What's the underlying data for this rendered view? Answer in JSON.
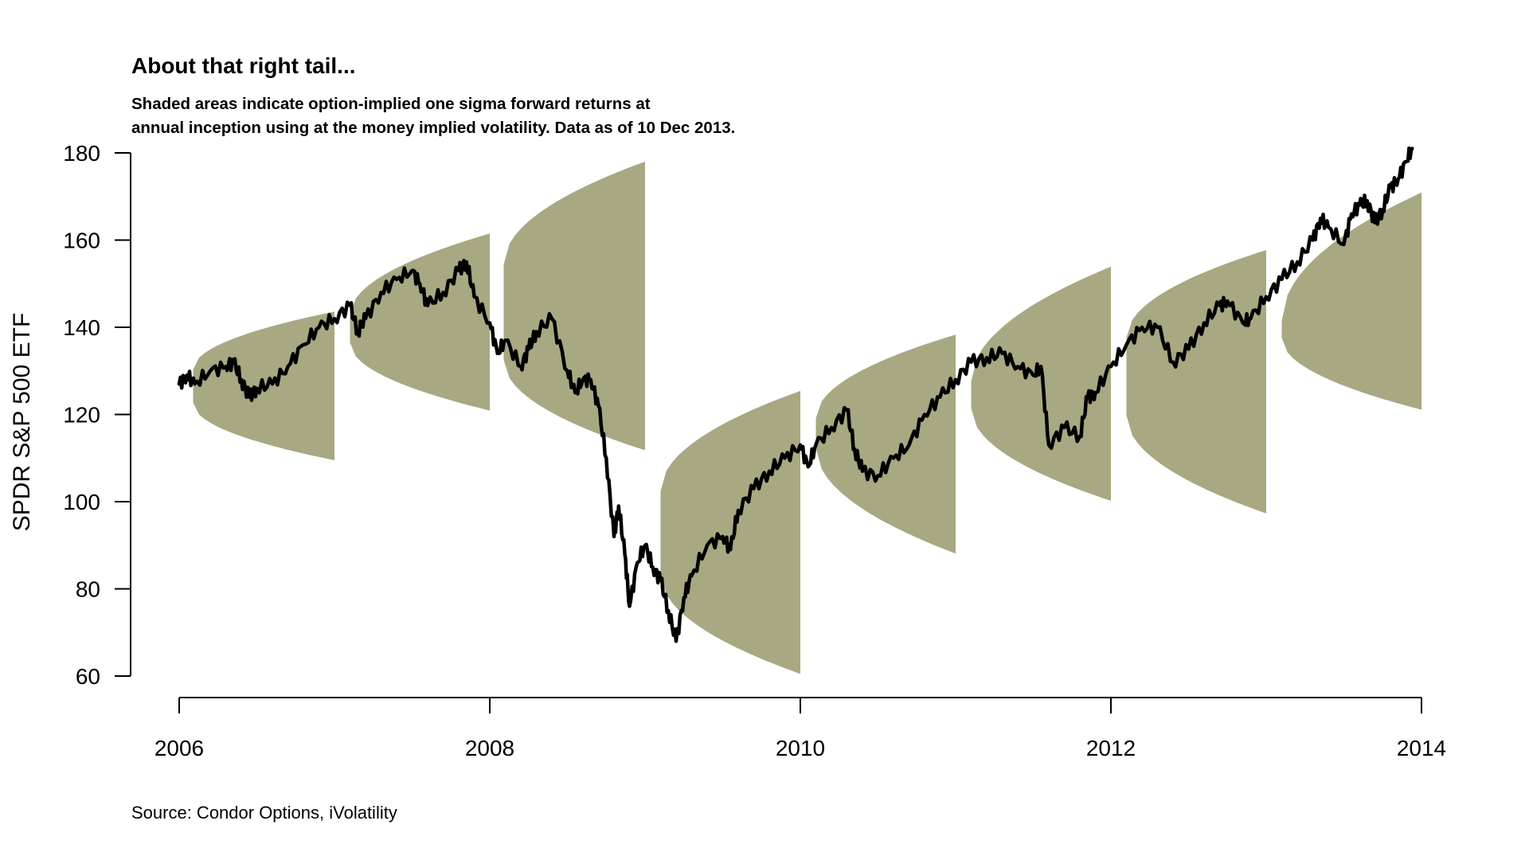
{
  "header": {
    "title": "About that right tail...",
    "subtitle_lines": [
      "Shaded areas indicate option-implied one sigma forward returns at",
      "annual inception using at the money implied volatility. Data as of 10 Dec 2013."
    ]
  },
  "footer": {
    "source": "Source: Condor Options, iVolatility"
  },
  "colors": {
    "band_fill": "#A8A882",
    "line": "#000000",
    "axis": "#000000"
  },
  "chart_data": {
    "type": "line",
    "title": "About that right tail...",
    "xlabel": "",
    "ylabel": "SPDR S&P 500 ETF",
    "xlim": [
      2006,
      2014
    ],
    "ylim": [
      60,
      180
    ],
    "x_ticks": [
      2006,
      2008,
      2010,
      2012,
      2014
    ],
    "x_tick_labels": [
      "2006",
      "2008",
      "2010",
      "2012",
      "2014"
    ],
    "y_ticks": [
      60,
      80,
      100,
      120,
      140,
      160,
      180
    ],
    "y_tick_labels": [
      "60",
      "80",
      "100",
      "120",
      "140",
      "160",
      "180"
    ],
    "grid": false,
    "legend": null,
    "series": [
      {
        "name": "SPDR S&P 500 ETF price",
        "x": [
          2006.0,
          2006.05,
          2006.1,
          2006.2,
          2006.3,
          2006.35,
          2006.4,
          2006.45,
          2006.5,
          2006.6,
          2006.7,
          2006.8,
          2006.9,
          2007.0,
          2007.1,
          2007.15,
          2007.2,
          2007.3,
          2007.4,
          2007.5,
          2007.55,
          2007.6,
          2007.7,
          2007.8,
          2007.85,
          2007.9,
          2008.0,
          2008.05,
          2008.1,
          2008.2,
          2008.25,
          2008.3,
          2008.4,
          2008.5,
          2008.55,
          2008.6,
          2008.65,
          2008.7,
          2008.75,
          2008.8,
          2008.83,
          2008.87,
          2008.9,
          2008.95,
          2009.0,
          2009.05,
          2009.1,
          2009.15,
          2009.2,
          2009.25,
          2009.3,
          2009.4,
          2009.5,
          2009.55,
          2009.6,
          2009.7,
          2009.8,
          2009.9,
          2010.0,
          2010.05,
          2010.1,
          2010.2,
          2010.3,
          2010.35,
          2010.4,
          2010.5,
          2010.6,
          2010.7,
          2010.8,
          2010.9,
          2011.0,
          2011.1,
          2011.2,
          2011.3,
          2011.4,
          2011.5,
          2011.55,
          2011.6,
          2011.7,
          2011.8,
          2011.85,
          2011.9,
          2012.0,
          2012.1,
          2012.2,
          2012.3,
          2012.4,
          2012.5,
          2012.6,
          2012.7,
          2012.75,
          2012.85,
          2012.9,
          2013.0,
          2013.1,
          2013.2,
          2013.3,
          2013.35,
          2013.4,
          2013.5,
          2013.55,
          2013.6,
          2013.65,
          2013.7,
          2013.75,
          2013.8,
          2013.85,
          2013.9,
          2013.94
        ],
        "values": [
          127,
          129,
          127,
          130,
          131,
          132,
          128,
          124,
          126,
          127,
          131,
          136,
          140,
          142,
          145,
          139,
          142,
          148,
          151,
          153,
          150,
          145,
          148,
          153,
          155,
          147,
          141,
          134,
          137,
          131,
          135,
          139,
          142,
          130,
          125,
          128,
          128,
          122,
          110,
          92,
          99,
          88,
          76,
          86,
          90,
          85,
          82,
          75,
          68,
          78,
          83,
          90,
          92,
          89,
          98,
          103,
          107,
          110,
          113,
          108,
          113,
          117,
          121,
          112,
          107,
          106,
          110,
          113,
          120,
          124,
          128,
          132,
          133,
          134,
          131,
          129,
          131,
          113,
          117,
          115,
          124,
          125,
          131,
          136,
          140,
          140,
          132,
          135,
          141,
          145,
          146,
          141,
          142,
          147,
          151,
          155,
          160,
          165,
          163,
          159,
          166,
          168,
          169,
          164,
          167,
          172,
          174,
          178,
          181
        ]
      }
    ],
    "bands": [
      {
        "name": "2006 one-sigma range",
        "x_start": 2006.09,
        "x_end": 2007.0,
        "upper": [
          130.3,
          143.6
        ],
        "lower": [
          122.7,
          109.5
        ]
      },
      {
        "name": "2007 one-sigma range",
        "x_start": 2007.1,
        "x_end": 2008.0,
        "upper": [
          142.8,
          161.5
        ],
        "lower": [
          136.5,
          120.9
        ]
      },
      {
        "name": "2008 one-sigma range",
        "x_start": 2008.09,
        "x_end": 2009.0,
        "upper": [
          154.4,
          178.0
        ],
        "lower": [
          132.5,
          111.8
        ]
      },
      {
        "name": "2009 one-sigma range",
        "x_start": 2009.1,
        "x_end": 2010.0,
        "upper": [
          102.4,
          125.4
        ],
        "lower": [
          83.4,
          60.5
        ]
      },
      {
        "name": "2010 one-sigma range",
        "x_start": 2010.1,
        "x_end": 2011.0,
        "upper": [
          119.1,
          138.3
        ],
        "lower": [
          112.4,
          88.1
        ]
      },
      {
        "name": "2011 one-sigma range",
        "x_start": 2011.1,
        "x_end": 2012.0,
        "upper": [
          127.6,
          153.9
        ],
        "lower": [
          121.4,
          100.2
        ]
      },
      {
        "name": "2012 one-sigma range",
        "x_start": 2012.1,
        "x_end": 2013.0,
        "upper": [
          137.6,
          157.7
        ],
        "lower": [
          119.8,
          97.3
        ]
      },
      {
        "name": "2013 one-sigma range",
        "x_start": 2013.1,
        "x_end": 2014.0,
        "upper": [
          141.4,
          170.9
        ],
        "lower": [
          137.6,
          121.1
        ]
      }
    ]
  }
}
